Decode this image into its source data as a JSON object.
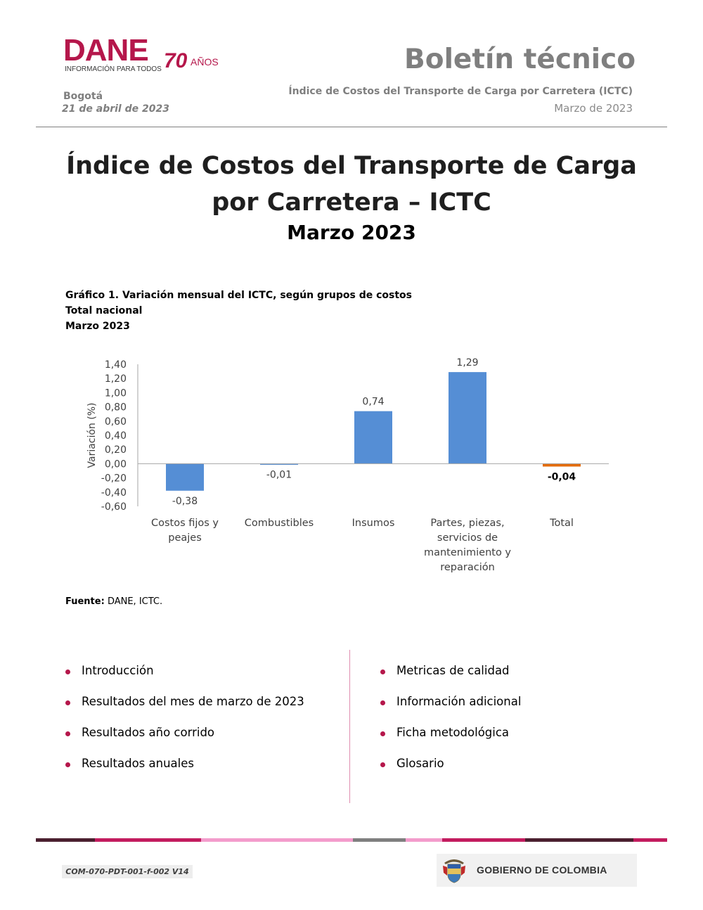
{
  "header": {
    "logo_text": "DANE",
    "logo_tagline": "INFORMACIÓN PARA TODOS",
    "anniversary_number": "70",
    "anniversary_word": "AÑOS",
    "city": "Bogotá",
    "date": "21 de abril de 2023",
    "bulletin_title": "Boletín técnico",
    "bulletin_subtitle": "Índice de Costos del Transporte de Carga por Carretera (ICTC)",
    "bulletin_month": "Marzo de 2023"
  },
  "document": {
    "title_line1": "Índice de Costos del Transporte de Carga",
    "title_line2": "por Carretera – ICTC",
    "subtitle": "Marzo 2023"
  },
  "chart_caption": {
    "line1": "Gráfico 1. Variación mensual del ICTC, según grupos de costos",
    "line2": "Total nacional",
    "line3": "Marzo 2023"
  },
  "chart_data": {
    "type": "bar",
    "title": "Gráfico 1. Variación mensual del ICTC, según grupos de costos",
    "xlabel": "",
    "ylabel": "Variación (%)",
    "ylim": [
      -0.6,
      1.4
    ],
    "yticks": [
      "1,40",
      "1,20",
      "1,00",
      "0,80",
      "0,60",
      "0,40",
      "0,20",
      "0,00",
      "-0,20",
      "-0,40",
      "-0,60"
    ],
    "ytick_values": [
      1.4,
      1.2,
      1.0,
      0.8,
      0.6,
      0.4,
      0.2,
      0.0,
      -0.2,
      -0.4,
      -0.6
    ],
    "categories": [
      [
        "Costos fijos y",
        "peajes"
      ],
      [
        "Combustibles"
      ],
      [
        "Insumos"
      ],
      [
        "Partes, piezas,",
        "servicios de",
        "mantenimiento y",
        "reparación"
      ],
      [
        "Total"
      ]
    ],
    "values": [
      -0.38,
      -0.01,
      0.74,
      1.29,
      -0.04
    ],
    "value_labels": [
      "-0,38",
      "-0,01",
      "0,74",
      "1,29",
      "-0,04"
    ],
    "colors": [
      "#558ed5",
      "#558ed5",
      "#558ed5",
      "#558ed5",
      "#e46c0a"
    ],
    "grid": false,
    "legend": "none"
  },
  "source": {
    "label": "Fuente:",
    "text": "DANE, ICTC."
  },
  "toc": {
    "left": [
      "Introducción",
      "Resultados del mes de marzo de 2023",
      "Resultados año corrido",
      "Resultados anuales"
    ],
    "right": [
      "Metricas de calidad",
      "Información adicional",
      "Ficha metodológica",
      "Glosario"
    ]
  },
  "footer": {
    "doc_code": "COM-070-PDT-001-f-002 V14",
    "government": "GOBIERNO DE COLOMBIA",
    "bar_colors": [
      "#4a1f2f",
      "#c21b5e",
      "#f39ccc",
      "#7f7f7f",
      "#f39ccc",
      "#c21b5e",
      "#4a1f2f",
      "#c21b5e"
    ]
  }
}
